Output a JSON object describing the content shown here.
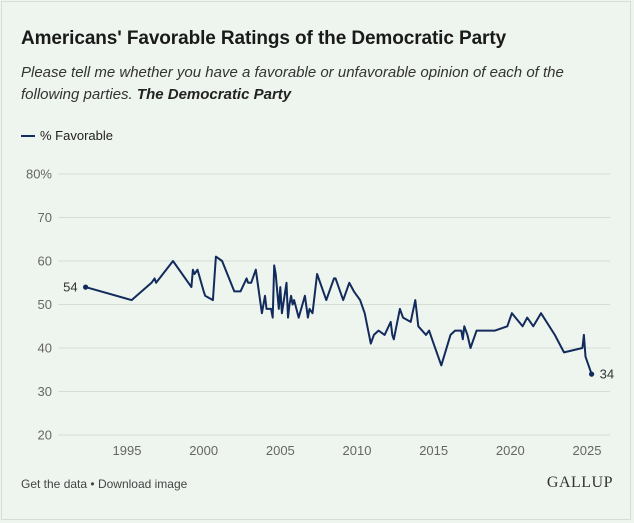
{
  "title": "Americans' Favorable Ratings of the Democratic Party",
  "subtitle_prefix": "Please tell me whether you have a favorable or unfavorable opinion of each of the following parties.",
  "subtitle_party": "The Democratic Party",
  "footer": {
    "get_data": "Get the data",
    "separator": "•",
    "download": "Download image"
  },
  "brand": "GALLUP",
  "colors": {
    "line": "#122b5c",
    "background": "#eef5ee",
    "grid": "#d6ddd6"
  },
  "chart_data": {
    "type": "line",
    "legend": [
      "% Favorable"
    ],
    "xlabel": "",
    "ylabel": "",
    "xlim": [
      1990.5,
      2026.5
    ],
    "ylim": [
      20,
      80
    ],
    "y_ticks": [
      20,
      30,
      40,
      50,
      60,
      70,
      80
    ],
    "y_tick_labels": [
      "20",
      "30",
      "40",
      "50",
      "60",
      "70",
      "80%"
    ],
    "x_ticks": [
      1995,
      2000,
      2005,
      2010,
      2015,
      2020,
      2025
    ],
    "x_tick_labels": [
      "1995",
      "2000",
      "2005",
      "2010",
      "2015",
      "2020",
      "2025"
    ],
    "annotations": [
      {
        "x": 1992.3,
        "y": 54,
        "text": "54",
        "position": "left"
      },
      {
        "x": 2025.3,
        "y": 34,
        "text": "34",
        "position": "right"
      }
    ],
    "series": [
      {
        "name": "% Favorable",
        "x": [
          1992.3,
          1995.3,
          1996.6,
          1996.8,
          1996.9,
          1998.0,
          1999.2,
          1999.3,
          1999.4,
          1999.6,
          2000.0,
          2000.1,
          2000.6,
          2000.8,
          2001.2,
          2002.0,
          2002.4,
          2002.8,
          2002.9,
          2003.0,
          2003.1,
          2003.2,
          2003.4,
          2003.8,
          2004.0,
          2004.1,
          2004.4,
          2004.5,
          2004.6,
          2004.7,
          2004.9,
          2005.0,
          2005.1,
          2005.4,
          2005.5,
          2005.6,
          2005.7,
          2005.8,
          2005.9,
          2006.2,
          2006.6,
          2006.8,
          2006.9,
          2007.1,
          2007.4,
          2008.0,
          2008.3,
          2008.5,
          2008.6,
          2008.7,
          2009.1,
          2009.5,
          2009.8,
          2010.2,
          2010.5,
          2010.9,
          2011.1,
          2011.4,
          2011.8,
          2012.2,
          2012.3,
          2012.4,
          2012.8,
          2013.0,
          2013.5,
          2013.8,
          2014.0,
          2014.5,
          2014.7,
          2014.9,
          2015.5,
          2016.1,
          2016.4,
          2016.8,
          2016.9,
          2017.0,
          2017.2,
          2017.4,
          2017.8,
          2018.5,
          2019.0,
          2019.8,
          2020.1,
          2020.8,
          2021.1,
          2021.5,
          2022.0,
          2022.9,
          2023.5,
          2024.7,
          2024.8,
          2024.9,
          2025.3
        ],
        "values": [
          54,
          51,
          55,
          56,
          55,
          60,
          54,
          58,
          57,
          58,
          53,
          52,
          51,
          61,
          60,
          53,
          53,
          56,
          55,
          55,
          55,
          56,
          58,
          48,
          52,
          49,
          49,
          47,
          59,
          57,
          49,
          54,
          48,
          55,
          47,
          50,
          52,
          50,
          51,
          47,
          52,
          47,
          49,
          48,
          57,
          51,
          54,
          56,
          56,
          55,
          51,
          55,
          53,
          51,
          48,
          41,
          43,
          44,
          43,
          46,
          43,
          42,
          49,
          47,
          46,
          51,
          45,
          43,
          44,
          42,
          36,
          43,
          44,
          44,
          42,
          45,
          43,
          40,
          44,
          44,
          44,
          45,
          48,
          45,
          47,
          45,
          48,
          43,
          39,
          40,
          43,
          38,
          34
        ]
      }
    ]
  }
}
